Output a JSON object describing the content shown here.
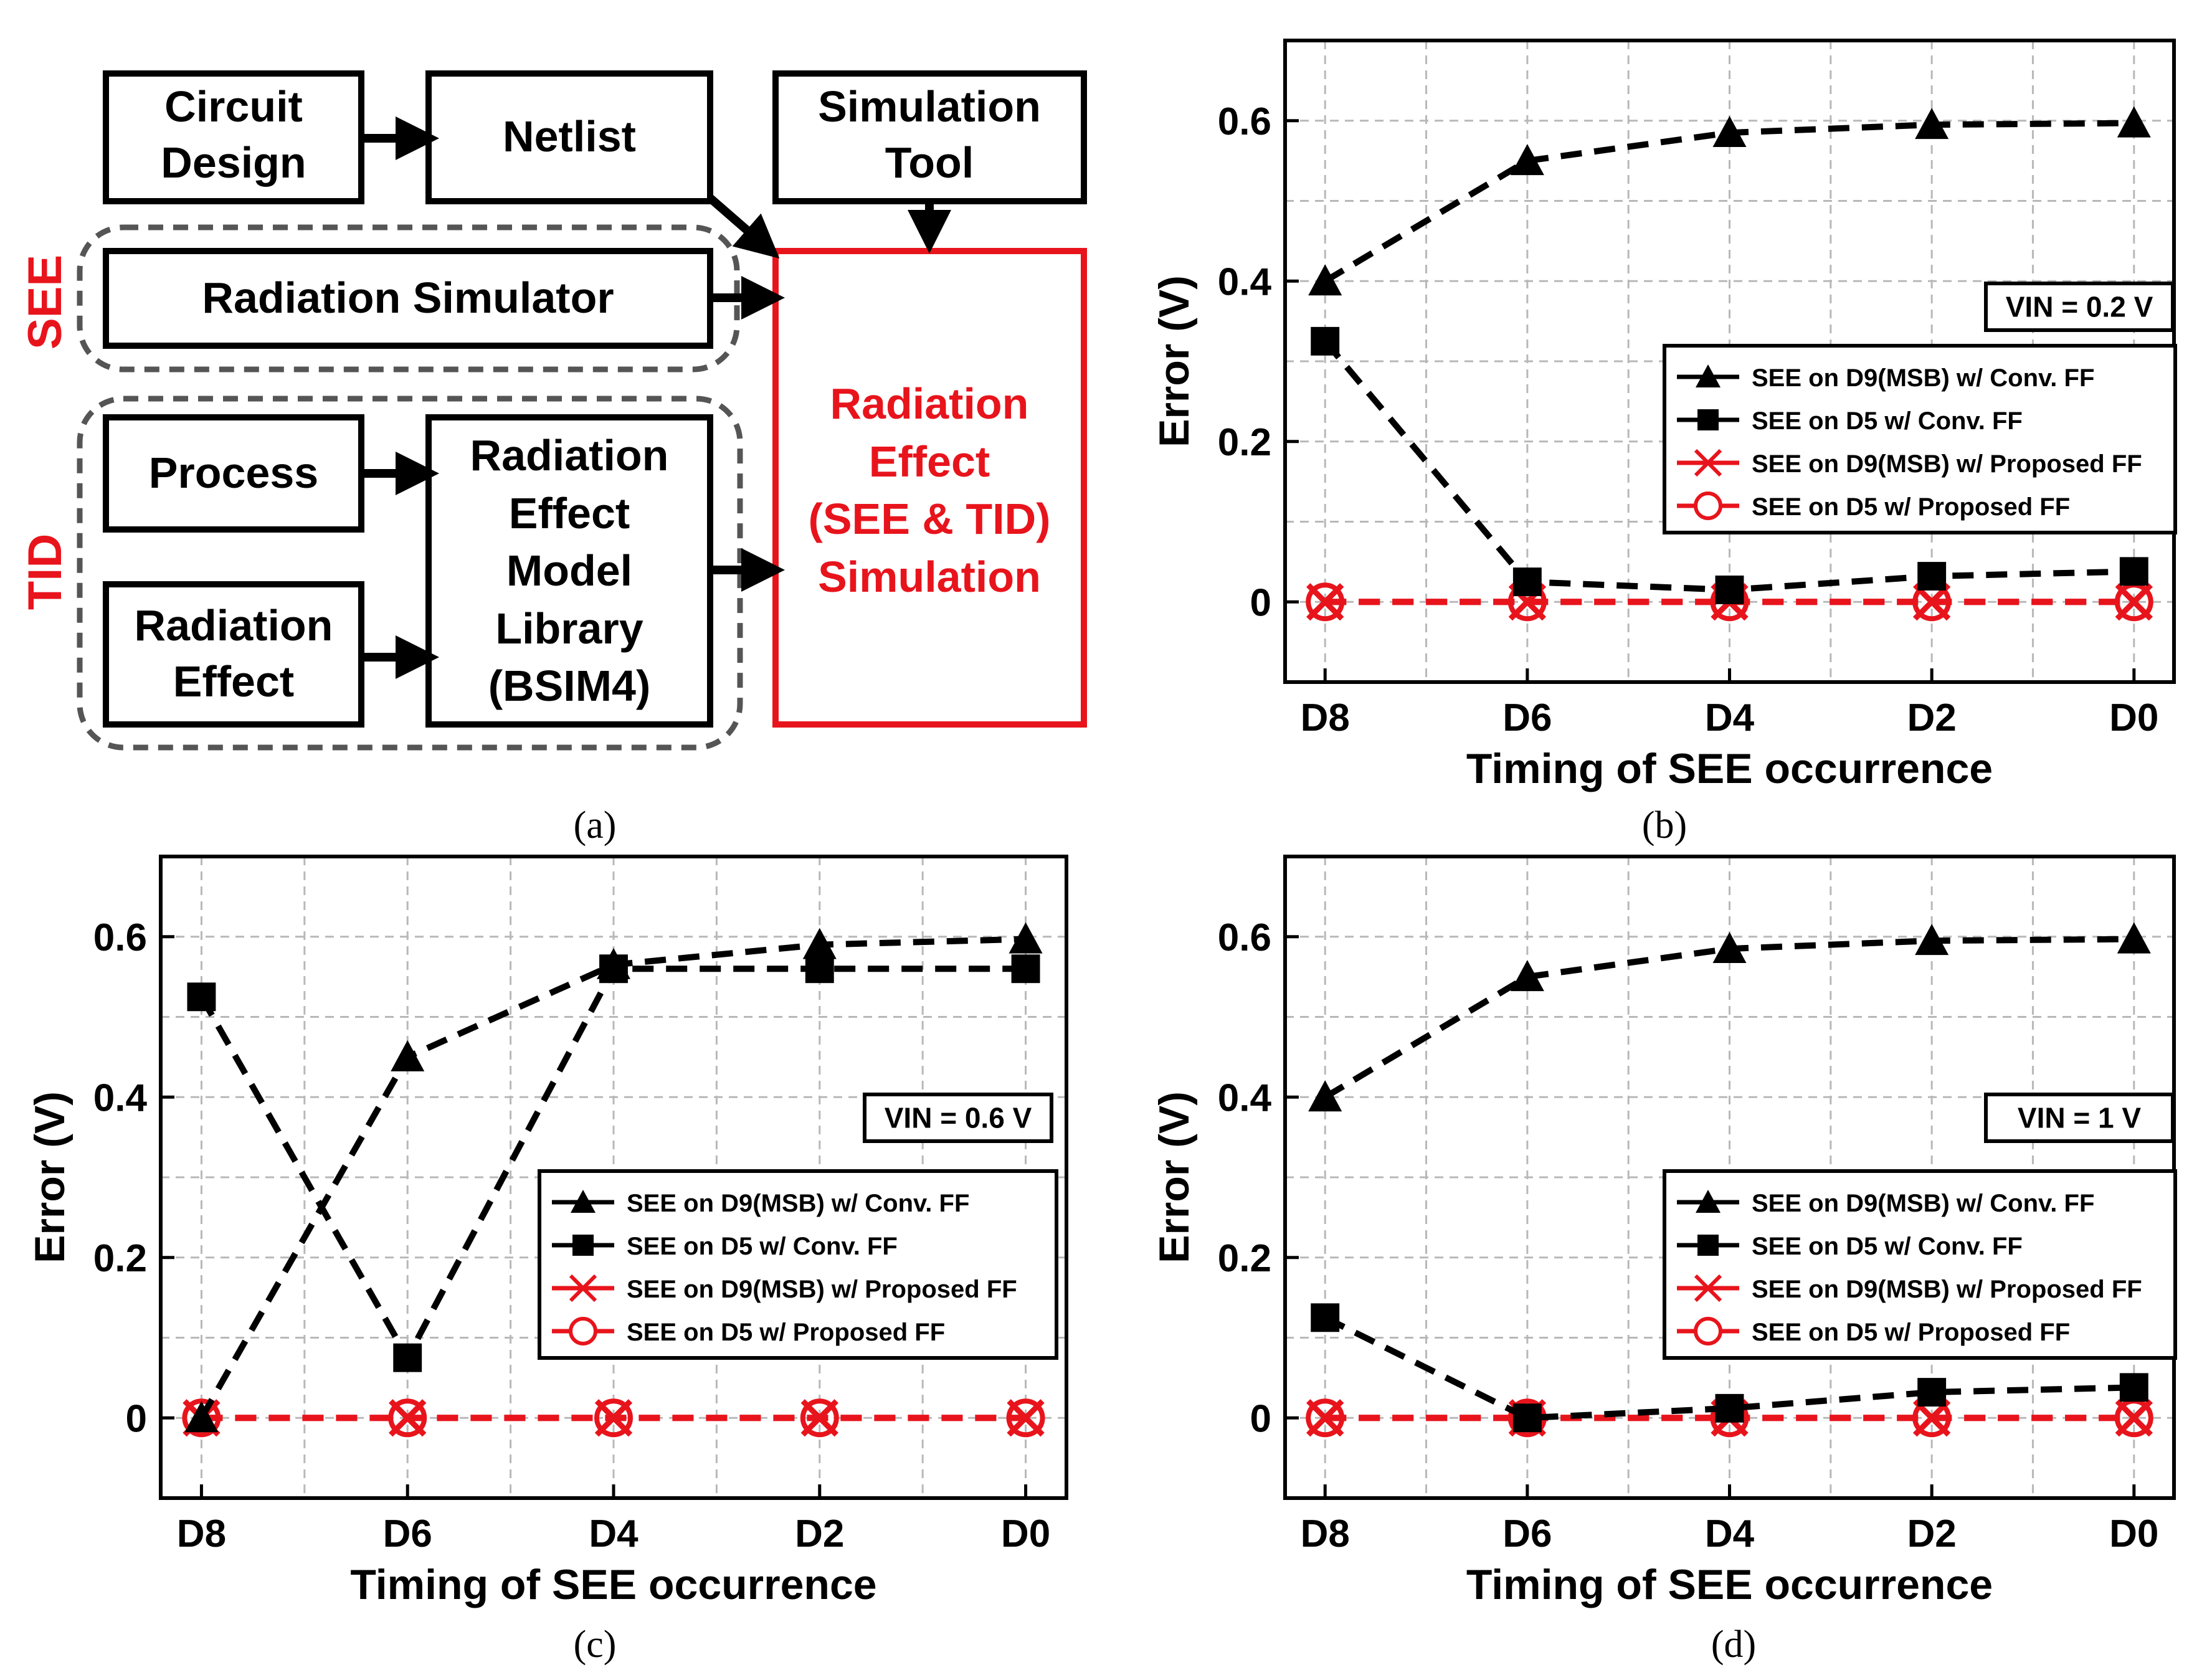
{
  "colors": {
    "accent_red": "#e8141c",
    "black": "#000000",
    "grid": "#b8b8b8",
    "group_border": "#555555"
  },
  "flow": {
    "boxes": {
      "circuit_design": [
        "Circuit",
        "Design"
      ],
      "netlist": [
        "Netlist"
      ],
      "simulation_tool": [
        "Simulation",
        "Tool"
      ],
      "radiation_simulator": [
        "Radiation Simulator"
      ],
      "process": [
        "Process"
      ],
      "radiation_effect": [
        "Radiation",
        "Effect"
      ],
      "model_library": [
        "Radiation",
        "Effect",
        "Model",
        "Library",
        "(BSIM4)"
      ],
      "radiation_simulation": [
        "Radiation",
        "Effect",
        "(SEE & TID)",
        "Simulation"
      ]
    },
    "group_labels": {
      "see": "SEE",
      "tid": "TID"
    }
  },
  "captions": {
    "a": "(a)",
    "b": "(b)",
    "c": "(c)",
    "d": "(d)"
  },
  "chart_data": [
    {
      "id": "b",
      "type": "line",
      "categories": [
        "D8",
        "D6",
        "D4",
        "D2",
        "D0"
      ],
      "xlabel": "Timing of SEE occurrence",
      "ylabel": "Error (V)",
      "ylim": [
        -0.1,
        0.7
      ],
      "yticks": [
        0,
        0.2,
        0.4,
        0.6
      ],
      "ytick_labels": [
        "0",
        "0.2",
        "0.4",
        "0.6"
      ],
      "annotation": "VIN = 0.2 V",
      "legend_position": "right",
      "series": [
        {
          "name": "SEE on D9(MSB) w/ Conv. FF",
          "marker": "triangle",
          "color": "#000000",
          "values": [
            0.4,
            0.55,
            0.585,
            0.595,
            0.597
          ]
        },
        {
          "name": "SEE on D5 w/ Conv. FF",
          "marker": "square",
          "color": "#000000",
          "values": [
            0.325,
            0.025,
            0.015,
            0.032,
            0.038
          ]
        },
        {
          "name": "SEE on D9(MSB) w/ Proposed FF",
          "marker": "x",
          "color": "#e8141c",
          "values": [
            0,
            0,
            0,
            0,
            0
          ]
        },
        {
          "name": "SEE on D5 w/ Proposed FF",
          "marker": "circle",
          "color": "#e8141c",
          "values": [
            0,
            0,
            0,
            0,
            0
          ]
        }
      ]
    },
    {
      "id": "c",
      "type": "line",
      "categories": [
        "D8",
        "D6",
        "D4",
        "D2",
        "D0"
      ],
      "xlabel": "Timing of SEE occurrence",
      "ylabel": "Error (V)",
      "ylim": [
        -0.1,
        0.7
      ],
      "yticks": [
        0,
        0.2,
        0.4,
        0.6
      ],
      "ytick_labels": [
        "0",
        "0.2",
        "0.4",
        "0.6"
      ],
      "annotation": "VIN = 0.6 V",
      "legend_position": "right",
      "series": [
        {
          "name": "SEE on D9(MSB) w/ Conv. FF",
          "marker": "triangle",
          "color": "#000000",
          "values": [
            0.0,
            0.45,
            0.565,
            0.59,
            0.597
          ]
        },
        {
          "name": "SEE on D5 w/ Conv. FF",
          "marker": "square",
          "color": "#000000",
          "values": [
            0.525,
            0.075,
            0.56,
            0.56,
            0.56
          ]
        },
        {
          "name": "SEE on D9(MSB) w/ Proposed FF",
          "marker": "x",
          "color": "#e8141c",
          "values": [
            0,
            0,
            0,
            0,
            0
          ]
        },
        {
          "name": "SEE on D5 w/ Proposed FF",
          "marker": "circle",
          "color": "#e8141c",
          "values": [
            0,
            0,
            0,
            0,
            0
          ]
        }
      ]
    },
    {
      "id": "d",
      "type": "line",
      "categories": [
        "D8",
        "D6",
        "D4",
        "D2",
        "D0"
      ],
      "xlabel": "Timing of SEE occurrence",
      "ylabel": "Error (V)",
      "ylim": [
        -0.1,
        0.7
      ],
      "yticks": [
        0,
        0.2,
        0.4,
        0.6
      ],
      "ytick_labels": [
        "0",
        "0.2",
        "0.4",
        "0.6"
      ],
      "annotation": "VIN = 1 V",
      "legend_position": "right",
      "series": [
        {
          "name": "SEE on D9(MSB) w/ Conv. FF",
          "marker": "triangle",
          "color": "#000000",
          "values": [
            0.4,
            0.55,
            0.585,
            0.595,
            0.597
          ]
        },
        {
          "name": "SEE on D5 w/ Conv. FF",
          "marker": "square",
          "color": "#000000",
          "values": [
            0.125,
            0.0,
            0.012,
            0.032,
            0.038
          ]
        },
        {
          "name": "SEE on D9(MSB) w/ Proposed FF",
          "marker": "x",
          "color": "#e8141c",
          "values": [
            0,
            0,
            0,
            0,
            0
          ]
        },
        {
          "name": "SEE on D5 w/ Proposed FF",
          "marker": "circle",
          "color": "#e8141c",
          "values": [
            0,
            0,
            0,
            0,
            0
          ]
        }
      ]
    }
  ]
}
